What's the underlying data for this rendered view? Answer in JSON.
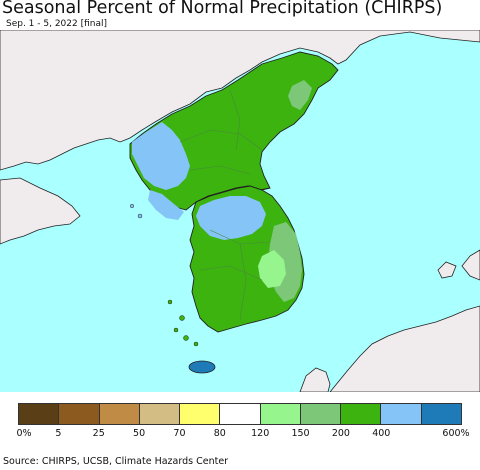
{
  "header": {
    "title": "Seasonal Percent of Normal Precipitation (CHIRPS)",
    "subtitle": "Sep. 1 - 5, 2022 [final]"
  },
  "colors": {
    "ocean": "#aaffff",
    "land_outside": "#f0ecee",
    "green_main": "#3cb30f",
    "green_light": "#96f58c",
    "green_mid": "#7dc878",
    "blue_light": "#85c4f7",
    "blue_dark": "#1f7bb8",
    "border": "#333333"
  },
  "legend": {
    "colors": [
      "#5a3e15",
      "#8c5a1e",
      "#c08b45",
      "#d3bd85",
      "#ffff6e",
      "#ffffff",
      "#96f58c",
      "#7dc878",
      "#3cb30f",
      "#85c4f7",
      "#1f7bb8"
    ],
    "labels": [
      "0%",
      "5",
      "25",
      "50",
      "70",
      "80",
      "120",
      "150",
      "200",
      "400",
      "600%"
    ]
  },
  "footer": {
    "source": "Source: CHIRPS, UCSB, Climate Hazards Center"
  }
}
